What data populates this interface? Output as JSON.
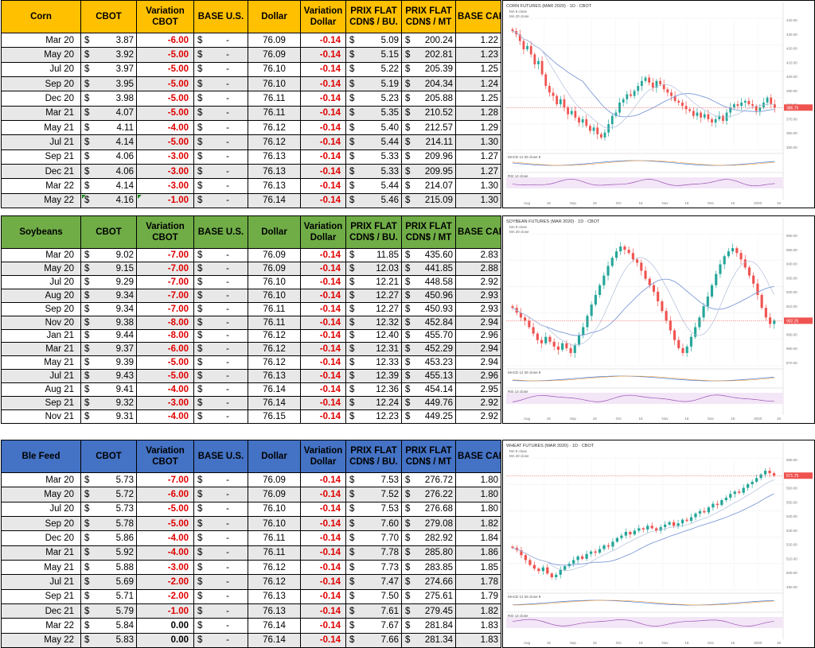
{
  "headers": {
    "cbot": "CBOT",
    "variation_cbot": [
      "Variation",
      "CBOT"
    ],
    "base_us": "BASE U.S.",
    "dollar": "Dollar",
    "variation_dollar": [
      "Variation",
      "Dollar"
    ],
    "prix_flat_bu": [
      "PRIX FLAT",
      "CDN$ / BU."
    ],
    "prix_flat_mt": [
      "PRIX FLAT",
      "CDN$ / MT"
    ],
    "base_cad": "BASE CAD"
  },
  "colors": {
    "corn": "#ffc000",
    "soybeans": "#70ad47",
    "ble": "#4472c4",
    "red": "#e00000"
  },
  "sections": [
    {
      "title": "Corn",
      "rows": [
        [
          "Mar 20",
          "3.87",
          "-6.00",
          "76.09",
          "-0.14",
          "5.09",
          "200.24",
          "1.22"
        ],
        [
          "May 20",
          "3.92",
          "-5.00",
          "76.09",
          "-0.14",
          "5.15",
          "202.81",
          "1.23"
        ],
        [
          "Jul 20",
          "3.97",
          "-5.00",
          "76.10",
          "-0.14",
          "5.22",
          "205.39",
          "1.25"
        ],
        [
          "Sep 20",
          "3.95",
          "-5.00",
          "76.10",
          "-0.14",
          "5.19",
          "204.34",
          "1.24"
        ],
        [
          "Dec 20",
          "3.98",
          "-5.00",
          "76.11",
          "-0.14",
          "5.23",
          "205.88",
          "1.25"
        ],
        [
          "Mar 21",
          "4.07",
          "-5.00",
          "76.11",
          "-0.14",
          "5.35",
          "210.52",
          "1.28"
        ],
        [
          "May 21",
          "4.11",
          "-4.00",
          "76.12",
          "-0.14",
          "5.40",
          "212.57",
          "1.29"
        ],
        [
          "Jul 21",
          "4.14",
          "-5.00",
          "76.12",
          "-0.14",
          "5.44",
          "214.11",
          "1.30"
        ],
        [
          "Sep 21",
          "4.06",
          "-3.00",
          "76.13",
          "-0.14",
          "5.33",
          "209.96",
          "1.27"
        ],
        [
          "Dec 21",
          "4.06",
          "-3.00",
          "76.13",
          "-0.14",
          "5.33",
          "209.95",
          "1.27"
        ],
        [
          "Mar 22",
          "4.14",
          "-3.00",
          "76.13",
          "-0.14",
          "5.44",
          "214.07",
          "1.30"
        ],
        [
          "May 22",
          "4.16",
          "-1.00",
          "76.14",
          "-0.14",
          "5.46",
          "215.09",
          "1.30"
        ]
      ],
      "chart": {
        "title": "CORN FUTURES (MAR 2020) · 1D · CBOT",
        "legend": [
          "MA 9 close",
          "MA 20 close"
        ],
        "price_label": "386.75",
        "indicators": [
          "MACD 12 26 close 9",
          "RSI 14 close"
        ],
        "x_labels": [
          "Aug",
          "16",
          "Sep",
          "16",
          "Oct",
          "16",
          "Nov",
          "16",
          "Dec",
          "16",
          "2020",
          "16"
        ],
        "y_labels": [
          "440.00",
          "430.00",
          "420.00",
          "410.00",
          "400.00",
          "390.00",
          "380.00",
          "370.00",
          "360.00",
          "350.00"
        ],
        "close": [
          432,
          430,
          426,
          421,
          423,
          418,
          412,
          414,
          406,
          399,
          395,
          393,
          388,
          391,
          386,
          382,
          384,
          380,
          377,
          379,
          375,
          372,
          374,
          370,
          368,
          371,
          376,
          381,
          383,
          389,
          391,
          394,
          393,
          396,
          399,
          402,
          404,
          401,
          398,
          402,
          400,
          397,
          395,
          393,
          390,
          389,
          387,
          385,
          384,
          381,
          383,
          380,
          382,
          379,
          377,
          379,
          381,
          378,
          383,
          386,
          388,
          387,
          389,
          390,
          388,
          387,
          384,
          386,
          389,
          392,
          388,
          386
        ]
      }
    },
    {
      "title": "Soybeans",
      "rows": [
        [
          "Mar 20",
          "9.02",
          "-7.00",
          "76.09",
          "-0.14",
          "11.85",
          "435.60",
          "2.83"
        ],
        [
          "May 20",
          "9.15",
          "-7.00",
          "76.09",
          "-0.14",
          "12.03",
          "441.85",
          "2.88"
        ],
        [
          "Jul 20",
          "9.29",
          "-7.00",
          "76.10",
          "-0.14",
          "12.21",
          "448.58",
          "2.92"
        ],
        [
          "Aug 20",
          "9.34",
          "-7.00",
          "76.10",
          "-0.14",
          "12.27",
          "450.96",
          "2.93"
        ],
        [
          "Sep 20",
          "9.34",
          "-7.00",
          "76.11",
          "-0.14",
          "12.27",
          "450.93",
          "2.93"
        ],
        [
          "Nov 20",
          "9.38",
          "-8.00",
          "76.11",
          "-0.14",
          "12.32",
          "452.84",
          "2.94"
        ],
        [
          "Jan 21",
          "9.44",
          "-8.00",
          "76.12",
          "-0.14",
          "12.40",
          "455.70",
          "2.96"
        ],
        [
          "Mar 21",
          "9.37",
          "-6.00",
          "76.12",
          "-0.14",
          "12.31",
          "452.29",
          "2.94"
        ],
        [
          "May 21",
          "9.39",
          "-5.00",
          "76.12",
          "-0.14",
          "12.33",
          "453.23",
          "2.94"
        ],
        [
          "Jul 21",
          "9.43",
          "-5.00",
          "76.13",
          "-0.14",
          "12.39",
          "455.13",
          "2.96"
        ],
        [
          "Aug 21",
          "9.41",
          "-4.00",
          "76.14",
          "-0.14",
          "12.36",
          "454.14",
          "2.95"
        ],
        [
          "Sep 21",
          "9.32",
          "-3.00",
          "76.14",
          "-0.14",
          "12.24",
          "449.76",
          "2.92"
        ],
        [
          "Nov 21",
          "9.31",
          "-4.00",
          "76.15",
          "-0.14",
          "12.23",
          "449.25",
          "2.92"
        ]
      ],
      "chart": {
        "title": "SOYBEAN FUTURES (MAR 2020) · 1D · CBOT",
        "legend": [
          "MA 9 close",
          "MA 20 close"
        ],
        "price_label": "902.25",
        "indicators": [
          "MACD 12 26 close 9",
          "RSI 14 close"
        ],
        "x_labels": [
          "Aug",
          "16",
          "Sep",
          "16",
          "Oct",
          "16",
          "Nov",
          "16",
          "Dec",
          "16",
          "2020",
          "16"
        ],
        "y_labels": [
          "960.00",
          "950.00",
          "940.00",
          "930.00",
          "920.00",
          "910.00",
          "900.00",
          "890.00",
          "880.00",
          "870.00"
        ],
        "close": [
          910,
          907,
          904,
          902,
          898,
          894,
          890,
          888,
          892,
          889,
          886,
          884,
          888,
          885,
          882,
          887,
          893,
          898,
          905,
          912,
          918,
          924,
          930,
          936,
          941,
          945,
          948,
          946,
          944,
          940,
          938,
          933,
          928,
          924,
          920,
          914,
          908,
          902,
          896,
          890,
          885,
          882,
          886,
          892,
          898,
          904,
          911,
          917,
          924,
          931,
          937,
          942,
          945,
          947,
          944,
          940,
          935,
          930,
          925,
          918,
          910,
          904,
          900,
          902
        ]
      }
    },
    {
      "title": "Ble Feed",
      "rows": [
        [
          "Mar 20",
          "5.73",
          "-7.00",
          "76.09",
          "-0.14",
          "7.53",
          "276.72",
          "1.80"
        ],
        [
          "May 20",
          "5.72",
          "-6.00",
          "76.09",
          "-0.14",
          "7.52",
          "276.22",
          "1.80"
        ],
        [
          "Jul 20",
          "5.73",
          "-5.00",
          "76.10",
          "-0.14",
          "7.53",
          "276.68",
          "1.80"
        ],
        [
          "Sep 20",
          "5.78",
          "-5.00",
          "76.10",
          "-0.14",
          "7.60",
          "279.08",
          "1.82"
        ],
        [
          "Dec 20",
          "5.86",
          "-4.00",
          "76.11",
          "-0.14",
          "7.70",
          "282.92",
          "1.84"
        ],
        [
          "Mar 21",
          "5.92",
          "-4.00",
          "76.11",
          "-0.14",
          "7.78",
          "285.80",
          "1.86"
        ],
        [
          "May 21",
          "5.88",
          "-3.00",
          "76.12",
          "-0.14",
          "7.73",
          "283.85",
          "1.85"
        ],
        [
          "Jul 21",
          "5.69",
          "-2.00",
          "76.12",
          "-0.14",
          "7.47",
          "274.66",
          "1.78"
        ],
        [
          "Sep 21",
          "5.71",
          "-2.00",
          "76.13",
          "-0.14",
          "7.50",
          "275.61",
          "1.79"
        ],
        [
          "Dec 21",
          "5.79",
          "-1.00",
          "76.13",
          "-0.14",
          "7.61",
          "279.45",
          "1.82"
        ],
        [
          "Mar 22",
          "5.84",
          "0.00",
          "76.14",
          "-0.14",
          "7.67",
          "281.84",
          "1.83"
        ],
        [
          "May 22",
          "5.83",
          "0.00",
          "76.14",
          "-0.14",
          "7.66",
          "281.34",
          "1.83"
        ]
      ],
      "chart": {
        "title": "WHEAT FUTURES (MAR 2020) · 1D · CBOT",
        "legend": [
          "MA 9 close",
          "MA 20 close"
        ],
        "price_label": "571.75",
        "indicators": [
          "MACD 12 26 close 9",
          "RSI 14 close"
        ],
        "x_labels": [
          "Aug",
          "16",
          "Sep",
          "16",
          "Oct",
          "16",
          "Nov",
          "16",
          "Dec",
          "16",
          "2020",
          "16"
        ],
        "y_labels": [
          "580.00",
          "570.00",
          "560.00",
          "550.00",
          "540.00",
          "530.00",
          "520.00",
          "510.00",
          "500.00",
          "490.00"
        ],
        "close": [
          512,
          510,
          506,
          502,
          498,
          495,
          493,
          496,
          491,
          488,
          490,
          494,
          497,
          499,
          502,
          505,
          503,
          507,
          509,
          508,
          511,
          514,
          513,
          517,
          520,
          522,
          525,
          523,
          526,
          528,
          527,
          530,
          528,
          526,
          529,
          531,
          533,
          530,
          532,
          535,
          534,
          537,
          540,
          542,
          541,
          545,
          548,
          547,
          551,
          553,
          556,
          558,
          557,
          561,
          564,
          566,
          569,
          572,
          575,
          573,
          571
        ]
      }
    }
  ]
}
